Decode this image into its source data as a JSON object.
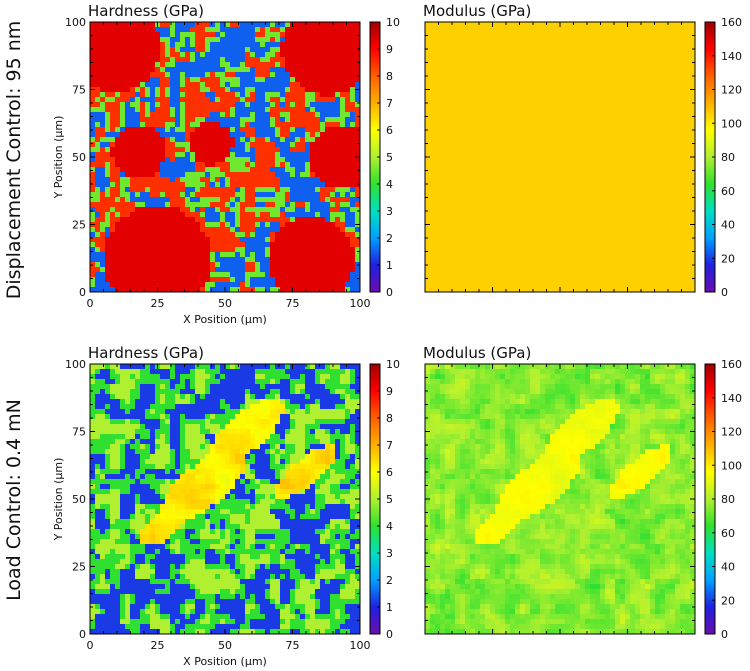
{
  "chart_data": [
    {
      "type": "heatmap",
      "row_label": "Displacement Control: 95 nm",
      "title": "Hardness (GPa)",
      "xlabel": "X Position (μm)",
      "ylabel": "Y Position (μm)",
      "xlim": [
        0,
        100
      ],
      "ylim": [
        0,
        100
      ],
      "x_ticks": [
        "0",
        "25",
        "50",
        "75",
        "100"
      ],
      "y_ticks": [
        "0",
        "25",
        "50",
        "75",
        "100"
      ],
      "colorbar": {
        "min": 0,
        "max": 10,
        "ticks": [
          "0",
          "1",
          "2",
          "3",
          "4",
          "5",
          "6",
          "7",
          "8",
          "9",
          "10"
        ]
      },
      "map_pattern": "hard"
    },
    {
      "type": "heatmap",
      "row_label": "Displacement Control: 95 nm",
      "title": "Modulus (GPa)",
      "xlabel": "",
      "ylabel": "",
      "xlim": [
        0,
        100
      ],
      "ylim": [
        0,
        100
      ],
      "x_ticks": [],
      "y_ticks": [],
      "colorbar": {
        "min": 0,
        "max": 160,
        "ticks": [
          "0",
          "20",
          "40",
          "60",
          "80",
          "100",
          "120",
          "140",
          "160"
        ]
      },
      "map_pattern": "mod"
    },
    {
      "type": "heatmap",
      "row_label": "Load Control: 0.4 mN",
      "title": "Hardness (GPa)",
      "xlabel": "X Position (μm)",
      "ylabel": "Y Position (μm)",
      "xlim": [
        0,
        100
      ],
      "ylim": [
        0,
        100
      ],
      "x_ticks": [
        "0",
        "25",
        "50",
        "75",
        "100"
      ],
      "y_ticks": [
        "0",
        "25",
        "50",
        "75",
        "100"
      ],
      "colorbar": {
        "min": 0,
        "max": 10,
        "ticks": [
          "0",
          "1",
          "2",
          "3",
          "4",
          "5",
          "6",
          "7",
          "8",
          "9",
          "10"
        ]
      },
      "map_pattern": "hardLoad"
    },
    {
      "type": "heatmap",
      "row_label": "Load Control: 0.4 mN",
      "title": "Modulus (GPa)",
      "xlabel": "",
      "ylabel": "",
      "xlim": [
        0,
        100
      ],
      "ylim": [
        0,
        100
      ],
      "x_ticks": [],
      "y_ticks": [],
      "colorbar": {
        "min": 0,
        "max": 160,
        "ticks": [
          "0",
          "20",
          "40",
          "60",
          "80",
          "100",
          "120",
          "140",
          "160"
        ]
      },
      "map_pattern": "modLoad"
    }
  ],
  "row_labels": [
    "Displacement Control: 95 nm",
    "Load Control: 0.4 mN"
  ],
  "colormap": [
    "#6a0dad",
    "#2020e0",
    "#00a0ff",
    "#00e0c0",
    "#30e030",
    "#b0f030",
    "#ffff00",
    "#ffb000",
    "#ff6000",
    "#ff0000",
    "#a00000"
  ]
}
